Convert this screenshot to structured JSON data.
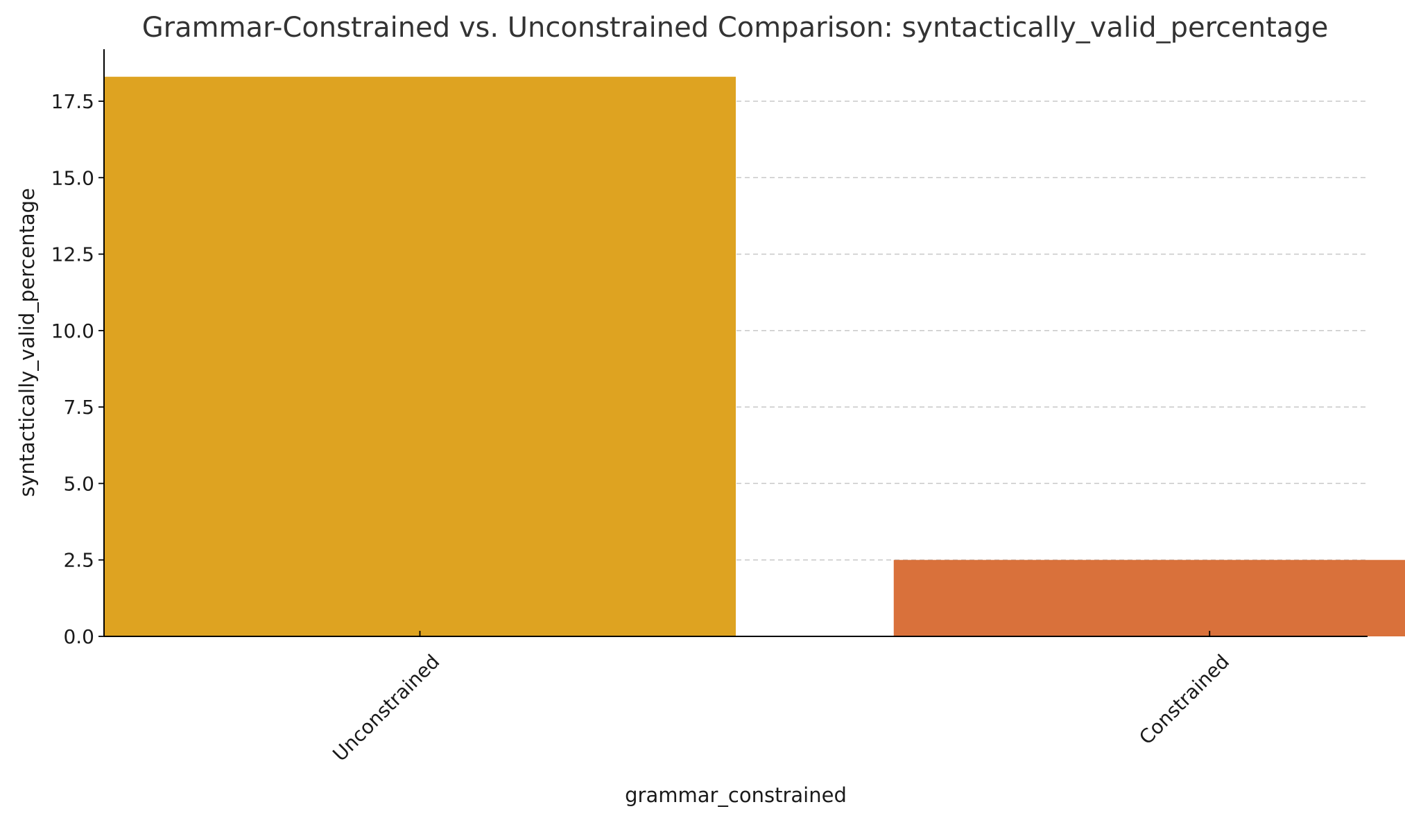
{
  "chart_data": {
    "type": "bar",
    "title": "Grammar-Constrained vs. Unconstrained Comparison: syntactically_valid_percentage",
    "xlabel": "grammar_constrained",
    "ylabel": "syntactically_valid_percentage",
    "categories": [
      "Unconstrained",
      "Constrained"
    ],
    "values": [
      18.3,
      2.5
    ],
    "colors": [
      "#dea321",
      "#d9713b"
    ],
    "ylim": [
      0,
      19.2
    ],
    "yticks": [
      0,
      2.5,
      5,
      7.5,
      10,
      12.5,
      15,
      17.5
    ],
    "ytick_labels": [
      "0.0",
      "2.5",
      "5.0",
      "7.5",
      "10.0",
      "12.5",
      "15.0",
      "17.5"
    ],
    "grid": "y-dashed",
    "legend": "none"
  }
}
